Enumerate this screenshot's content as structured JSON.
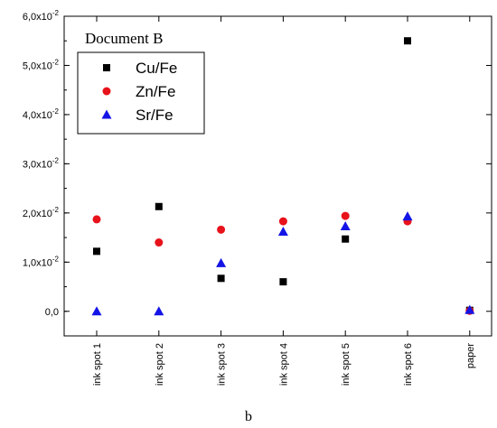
{
  "chart_data": {
    "type": "scatter",
    "legend_title": "Document B",
    "legend_position": "top-left",
    "categories": [
      "ink spot 1",
      "ink spot 2",
      "ink spot 3",
      "ink spot 4",
      "ink spot 5",
      "ink spot 6",
      "paper"
    ],
    "series": [
      {
        "name": "Cu/Fe",
        "marker": "square",
        "color": "#000000",
        "values": [
          0.0122,
          0.0213,
          0.0067,
          0.006,
          0.0147,
          0.055,
          0.0002
        ]
      },
      {
        "name": "Zn/Fe",
        "marker": "circle",
        "color": "#e8121b",
        "values": [
          0.0187,
          0.014,
          0.0166,
          0.0183,
          0.0194,
          0.0183,
          0.0001
        ]
      },
      {
        "name": "Sr/Fe",
        "marker": "triangle",
        "color": "#1414e6",
        "values": [
          0.0,
          0.0,
          0.0098,
          0.0162,
          0.0173,
          0.0193,
          0.0003
        ]
      }
    ],
    "ylim": [
      -0.005,
      0.06
    ],
    "yticks": [
      {
        "value": 0.0,
        "mantissa": "0,0",
        "exponent": ""
      },
      {
        "value": 0.01,
        "mantissa": "1,0x10",
        "exponent": "-2"
      },
      {
        "value": 0.02,
        "mantissa": "2,0x10",
        "exponent": "-2"
      },
      {
        "value": 0.03,
        "mantissa": "3,0x10",
        "exponent": "-2"
      },
      {
        "value": 0.04,
        "mantissa": "4,0x10",
        "exponent": "-2"
      },
      {
        "value": 0.05,
        "mantissa": "5,0x10",
        "exponent": "-2"
      },
      {
        "value": 0.06,
        "mantissa": "6,0x10",
        "exponent": "-2"
      }
    ],
    "grid": false,
    "caption": "b"
  }
}
